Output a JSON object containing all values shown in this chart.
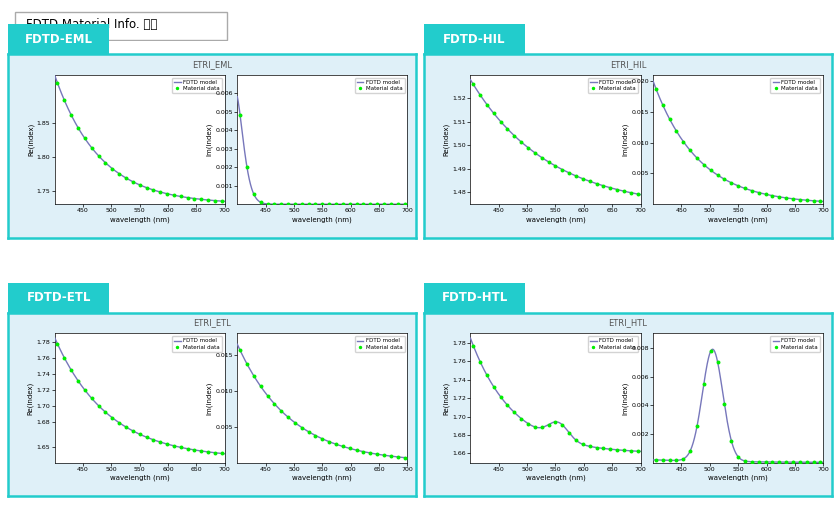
{
  "title": "FDTD Material Info. 확인",
  "panels": [
    {
      "label": "FDTD-EML",
      "plot_title": "ETRI_EML",
      "re_ylim": [
        1.73,
        1.92
      ],
      "re_yticks": [
        1.75,
        1.8,
        1.85
      ],
      "im_ylim": [
        0,
        0.007
      ],
      "im_yticks": [
        0.001,
        0.002,
        0.003,
        0.004,
        0.005,
        0.006
      ],
      "re_type": "eml_re",
      "im_type": "eml_im"
    },
    {
      "label": "FDTD-HIL",
      "plot_title": "ETRI_HIL",
      "re_ylim": [
        1.475,
        1.53
      ],
      "re_yticks": [
        1.48,
        1.49,
        1.5,
        1.51,
        1.52
      ],
      "im_ylim": [
        0,
        0.021
      ],
      "im_yticks": [
        0.005,
        0.01,
        0.015,
        0.02
      ],
      "re_type": "hil_re",
      "im_type": "hil_im"
    },
    {
      "label": "FDTD-ETL",
      "plot_title": "ETRI_ETL",
      "re_ylim": [
        1.63,
        1.79
      ],
      "re_yticks": [
        1.65,
        1.68,
        1.7,
        1.72,
        1.74,
        1.76,
        1.78
      ],
      "im_ylim": [
        0,
        0.018
      ],
      "im_yticks": [
        0.005,
        0.01,
        0.015
      ],
      "re_type": "etl_re",
      "im_type": "etl_im"
    },
    {
      "label": "FDTD-HTL",
      "plot_title": "ETRI_HTL",
      "re_ylim": [
        1.65,
        1.79
      ],
      "re_yticks": [
        1.66,
        1.68,
        1.7,
        1.72,
        1.74,
        1.76,
        1.78
      ],
      "im_ylim": [
        0,
        0.009
      ],
      "im_yticks": [
        0.002,
        0.004,
        0.006,
        0.008
      ],
      "re_type": "htl_re",
      "im_type": "htl_im"
    }
  ],
  "xlim": [
    400,
    700
  ],
  "xticks": [
    450,
    500,
    550,
    600,
    650,
    700
  ],
  "xlabel": "wavelength (nm)",
  "re_ylabel": "Re(index)",
  "im_ylabel": "Im(index)",
  "line_color": "#7777bb",
  "scatter_color": "#00ee00",
  "panel_bg": "#dff0f8",
  "panel_border": "#22cccc",
  "label_bg": "#22cccc",
  "label_color": "white",
  "fig_bg": "white"
}
